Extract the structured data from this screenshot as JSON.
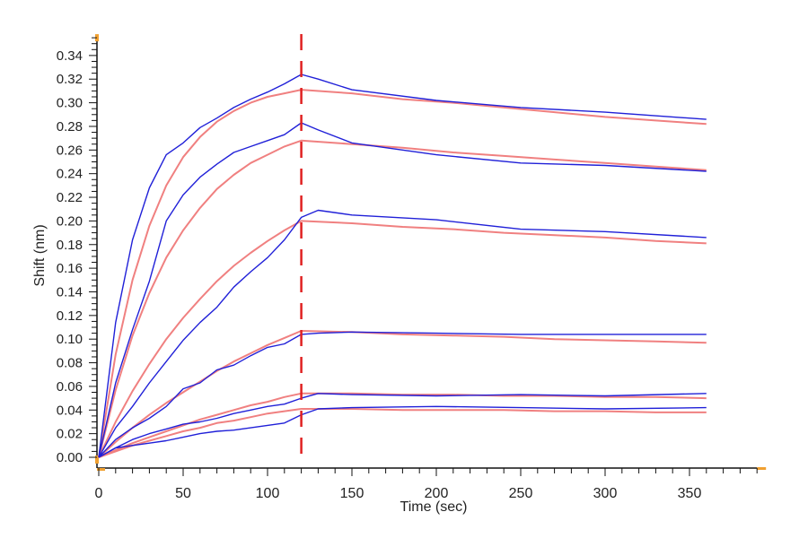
{
  "chart_data": {
    "type": "line",
    "title": "",
    "xlabel": "Time (sec)",
    "ylabel": "Shift (nm)",
    "xlim": [
      0,
      390
    ],
    "ylim": [
      -0.008,
      0.355
    ],
    "x_ticks": [
      0,
      50,
      100,
      150,
      200,
      250,
      300,
      350
    ],
    "x_tick_labels": [
      "0",
      "50",
      "100",
      "150",
      "200",
      "250",
      "300",
      "350"
    ],
    "y_ticks": [
      0,
      0.02,
      0.04,
      0.06,
      0.08,
      0.1,
      0.12,
      0.14,
      0.16,
      0.18,
      0.2,
      0.22,
      0.24,
      0.26,
      0.28,
      0.3,
      0.32,
      0.34
    ],
    "y_tick_labels": [
      "0.00",
      "0.02",
      "0.04",
      "0.06",
      "0.08",
      "0.10",
      "0.12",
      "0.14",
      "0.16",
      "0.18",
      "0.20",
      "0.22",
      "0.24",
      "0.26",
      "0.28",
      "0.30",
      "0.32",
      "0.34"
    ],
    "grid": false,
    "legend": "none",
    "vertical_marker": {
      "x": 120,
      "style": "dashed",
      "color": "#e02020"
    },
    "colors": {
      "measured": "#2020d8",
      "fit": "#f08080",
      "axis_end_marker": "#f0a030"
    },
    "measured": {
      "x": [
        0,
        10,
        20,
        30,
        40,
        50,
        60,
        70,
        80,
        90,
        100,
        110,
        120,
        130,
        150,
        200,
        250,
        300,
        360
      ],
      "series": [
        {
          "values": [
            0,
            0.114,
            0.184,
            0.228,
            0.256,
            0.266,
            0.279,
            0.287,
            0.296,
            0.303,
            0.309,
            0.316,
            0.324,
            0.32,
            0.311,
            0.302,
            0.296,
            0.292,
            0.286
          ]
        },
        {
          "values": [
            0,
            0.063,
            0.108,
            0.149,
            0.2,
            0.222,
            0.237,
            0.248,
            0.258,
            0.263,
            0.268,
            0.273,
            0.283,
            0.277,
            0.266,
            0.256,
            0.249,
            0.247,
            0.242
          ]
        },
        {
          "values": [
            0,
            0.025,
            0.043,
            0.063,
            0.081,
            0.099,
            0.114,
            0.127,
            0.144,
            0.157,
            0.169,
            0.184,
            0.203,
            0.209,
            0.205,
            0.201,
            0.193,
            0.191,
            0.186
          ]
        },
        {
          "values": [
            0,
            0.015,
            0.025,
            0.033,
            0.043,
            0.058,
            0.063,
            0.074,
            0.078,
            0.086,
            0.093,
            0.096,
            0.104,
            0.105,
            0.106,
            0.105,
            0.104,
            0.104,
            0.104
          ]
        },
        {
          "values": [
            0,
            0.008,
            0.015,
            0.02,
            0.024,
            0.028,
            0.03,
            0.033,
            0.037,
            0.04,
            0.043,
            0.045,
            0.05,
            0.054,
            0.053,
            0.052,
            0.053,
            0.052,
            0.054
          ]
        },
        {
          "values": [
            0,
            0.008,
            0.01,
            0.012,
            0.014,
            0.017,
            0.02,
            0.022,
            0.023,
            0.025,
            0.027,
            0.029,
            0.036,
            0.041,
            0.042,
            0.043,
            0.042,
            0.041,
            0.042
          ]
        }
      ]
    },
    "fit": {
      "x": [
        0,
        10,
        20,
        30,
        40,
        50,
        60,
        70,
        80,
        90,
        100,
        110,
        120,
        150,
        180,
        210,
        240,
        270,
        300,
        330,
        360
      ],
      "series": [
        {
          "values": [
            0,
            0.087,
            0.15,
            0.196,
            0.23,
            0.254,
            0.271,
            0.284,
            0.293,
            0.3,
            0.305,
            0.308,
            0.311,
            0.308,
            0.303,
            0.3,
            0.296,
            0.292,
            0.288,
            0.285,
            0.282
          ]
        },
        {
          "values": [
            0,
            0.057,
            0.103,
            0.139,
            0.169,
            0.192,
            0.211,
            0.227,
            0.239,
            0.249,
            0.256,
            0.263,
            0.268,
            0.265,
            0.262,
            0.258,
            0.255,
            0.252,
            0.249,
            0.246,
            0.243
          ]
        },
        {
          "values": [
            0,
            0.03,
            0.056,
            0.079,
            0.1,
            0.118,
            0.134,
            0.149,
            0.162,
            0.173,
            0.183,
            0.192,
            0.2,
            0.198,
            0.195,
            0.193,
            0.19,
            0.188,
            0.186,
            0.183,
            0.181
          ]
        },
        {
          "values": [
            0,
            0.013,
            0.025,
            0.036,
            0.046,
            0.055,
            0.064,
            0.073,
            0.081,
            0.088,
            0.095,
            0.101,
            0.107,
            0.106,
            0.104,
            0.103,
            0.102,
            0.1,
            0.099,
            0.098,
            0.097
          ]
        },
        {
          "values": [
            0,
            0.006,
            0.012,
            0.017,
            0.022,
            0.027,
            0.032,
            0.036,
            0.04,
            0.044,
            0.047,
            0.051,
            0.054,
            0.054,
            0.053,
            0.053,
            0.052,
            0.052,
            0.051,
            0.051,
            0.05
          ]
        },
        {
          "values": [
            0,
            0.005,
            0.01,
            0.014,
            0.018,
            0.022,
            0.025,
            0.029,
            0.031,
            0.034,
            0.037,
            0.039,
            0.041,
            0.041,
            0.04,
            0.04,
            0.04,
            0.039,
            0.039,
            0.038,
            0.038
          ]
        }
      ]
    }
  }
}
